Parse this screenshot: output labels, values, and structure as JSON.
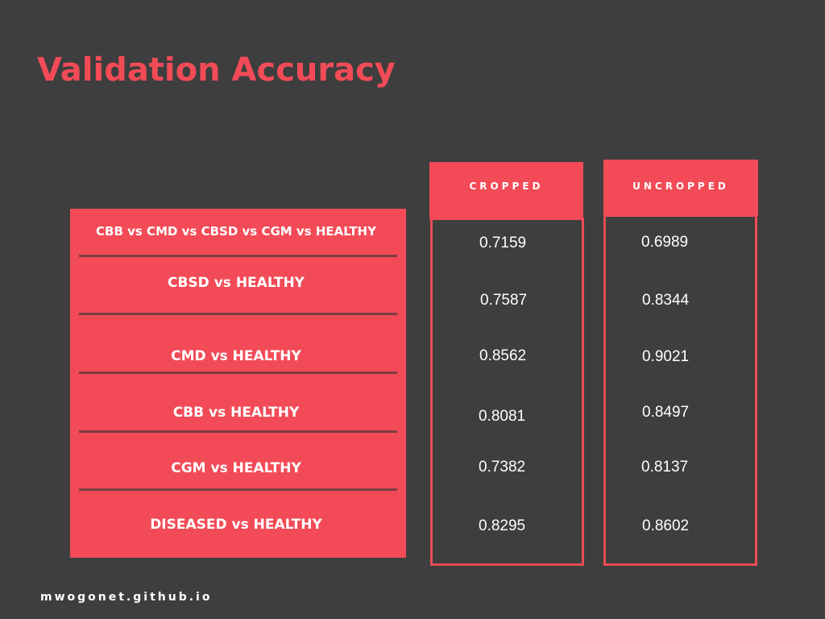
{
  "title": "Validation Accuracy",
  "columns": {
    "cropped": "CROPPED",
    "uncropped": "UNCROPPED"
  },
  "rows": [
    {
      "label": "CBB vs CMD vs CBSD vs CGM vs HEALTHY",
      "cropped": "0.7159",
      "uncropped": "0.6989"
    },
    {
      "label": "CBSD vs HEALTHY",
      "cropped": "0.7587",
      "uncropped": "0.8344"
    },
    {
      "label": "CMD vs HEALTHY",
      "cropped": "0.8562",
      "uncropped": "0.9021"
    },
    {
      "label": "CBB vs HEALTHY",
      "cropped": "0.8081",
      "uncropped": "0.8497"
    },
    {
      "label": "CGM vs HEALTHY",
      "cropped": "0.7382",
      "uncropped": "0.8137"
    },
    {
      "label": "DISEASED vs HEALTHY",
      "cropped": "0.8295",
      "uncropped": "0.8602"
    }
  ],
  "footer": "mwogonet.github.io",
  "colors": {
    "background": "#3e3e3e",
    "accent": "#f24b57",
    "divider": "#7b3d42",
    "text": "#ffffff"
  }
}
